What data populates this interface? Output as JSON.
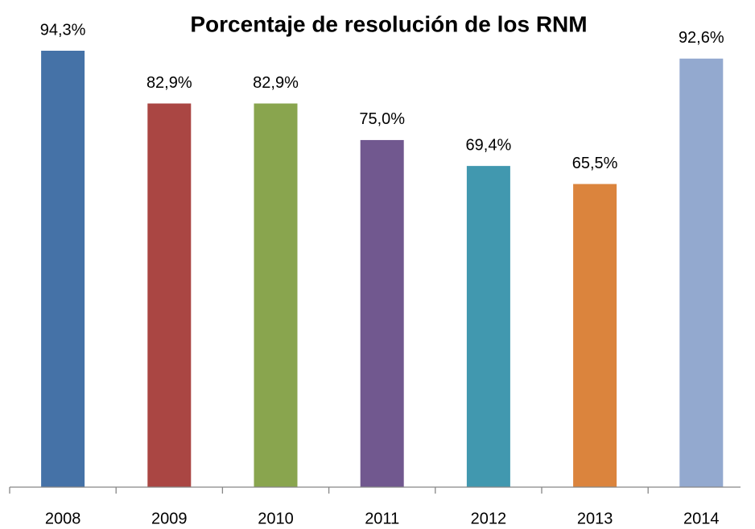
{
  "chart_data": {
    "type": "bar",
    "title": "Porcentaje de resolución de los RNM",
    "categories": [
      "2008",
      "2009",
      "2010",
      "2011",
      "2012",
      "2013",
      "2014"
    ],
    "values": [
      94.3,
      82.9,
      82.9,
      75.0,
      69.4,
      65.5,
      92.6
    ],
    "value_labels": [
      "94,3%",
      "82,9%",
      "82,9%",
      "75,0%",
      "69,4%",
      "65,5%",
      "92,6%"
    ],
    "colors": [
      "#4572a7",
      "#aa4643",
      "#89a54e",
      "#71588f",
      "#4198af",
      "#db843d",
      "#93a9cf"
    ]
  }
}
